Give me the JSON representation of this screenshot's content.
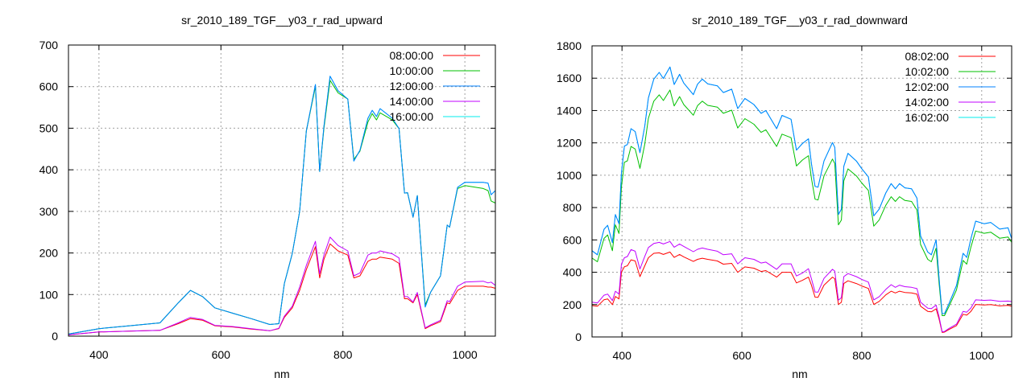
{
  "chart_data": [
    {
      "type": "line",
      "title": "sr_2010_189_TGF__y03_r_rad_upward",
      "xlabel": "nm",
      "ylabel": "",
      "xlim": [
        350,
        1050
      ],
      "ylim": [
        0,
        700
      ],
      "xticks": [
        400,
        600,
        800,
        1000
      ],
      "yticks": [
        0,
        100,
        200,
        300,
        400,
        500,
        600,
        700
      ],
      "grid": true,
      "legend_position": "top-right",
      "x": [
        350,
        400,
        450,
        500,
        530,
        550,
        570,
        590,
        620,
        650,
        680,
        695,
        704,
        717,
        729,
        740,
        755,
        762,
        769,
        779,
        792,
        808,
        818,
        828,
        841,
        848,
        855,
        861,
        881,
        892,
        901,
        906,
        915,
        922,
        935,
        944,
        960,
        971,
        975,
        988,
        1000,
        1030,
        1038,
        1043,
        1050
      ],
      "series": [
        {
          "name": "08:00:00",
          "color": "#ff0000",
          "values": [
            3,
            10,
            12,
            14,
            30,
            42,
            38,
            25,
            22,
            17,
            13,
            18,
            45,
            68,
            110,
            160,
            215,
            140,
            185,
            222,
            205,
            195,
            140,
            145,
            180,
            185,
            185,
            190,
            185,
            175,
            90,
            90,
            80,
            100,
            18,
            25,
            35,
            80,
            78,
            110,
            120,
            120,
            118,
            118,
            115
          ]
        },
        {
          "name": "10:00:00",
          "color": "#00c000",
          "values": [
            5,
            18,
            25,
            32,
            80,
            110,
            95,
            68,
            55,
            42,
            28,
            30,
            126,
            199,
            300,
            493,
            600,
            396,
            500,
            615,
            585,
            570,
            425,
            445,
            515,
            535,
            520,
            537,
            520,
            499,
            344,
            345,
            286,
            338,
            75,
            106,
            145,
            267,
            262,
            355,
            362,
            355,
            350,
            325,
            320
          ]
        },
        {
          "name": "12:00:00",
          "color": "#0080ff",
          "values": [
            5,
            18,
            25,
            32,
            80,
            110,
            95,
            68,
            55,
            42,
            28,
            30,
            126,
            199,
            300,
            493,
            605,
            396,
            505,
            625,
            590,
            570,
            421,
            447,
            524,
            543,
            528,
            547,
            524,
            499,
            344,
            345,
            286,
            338,
            70,
            106,
            145,
            267,
            262,
            358,
            370,
            370,
            368,
            340,
            350
          ]
        },
        {
          "name": "14:00:00",
          "color": "#c000ff",
          "values": [
            3,
            10,
            12,
            14,
            32,
            45,
            40,
            26,
            23,
            18,
            13,
            19,
            48,
            72,
            118,
            170,
            228,
            150,
            195,
            238,
            218,
            205,
            145,
            152,
            195,
            200,
            200,
            205,
            198,
            188,
            95,
            95,
            82,
            105,
            20,
            27,
            38,
            85,
            83,
            120,
            130,
            132,
            128,
            130,
            122
          ]
        },
        {
          "name": "16:00:00",
          "color": "#00eeee",
          "values": [
            5,
            18,
            25,
            32,
            80,
            110,
            95,
            68,
            55,
            42,
            28,
            30,
            126,
            199,
            300,
            493,
            605,
            396,
            505,
            625,
            590,
            570,
            421,
            447,
            524,
            543,
            528,
            547,
            524,
            499,
            344,
            345,
            286,
            338,
            70,
            106,
            145,
            267,
            262,
            358,
            370,
            370,
            368,
            340,
            350
          ]
        }
      ]
    },
    {
      "type": "line",
      "title": "sr_2010_189_TGF__y03_r_rad_downward",
      "xlabel": "nm",
      "ylabel": "",
      "xlim": [
        350,
        1050
      ],
      "ylim": [
        0,
        1800
      ],
      "xticks": [
        400,
        600,
        800,
        1000
      ],
      "yticks": [
        0,
        200,
        400,
        600,
        800,
        1000,
        1200,
        1400,
        1600,
        1800
      ],
      "grid": true,
      "legend_position": "top-right",
      "x": [
        350,
        359,
        370,
        376,
        384,
        389,
        395,
        399,
        404,
        409,
        415,
        422,
        430,
        438,
        444,
        453,
        462,
        469,
        480,
        487,
        496,
        503,
        519,
        526,
        534,
        543,
        559,
        569,
        583,
        593,
        605,
        620,
        632,
        640,
        658,
        667,
        682,
        691,
        701,
        711,
        716,
        722,
        727,
        737,
        751,
        755,
        761,
        766,
        770,
        777,
        791,
        800,
        811,
        820,
        829,
        840,
        849,
        856,
        863,
        872,
        883,
        892,
        898,
        910,
        916,
        924,
        929,
        934,
        938,
        945,
        958,
        969,
        975,
        982,
        990,
        1004,
        1015,
        1030,
        1044,
        1050
      ],
      "series": [
        {
          "name": "08:02:00",
          "color": "#ff0000",
          "values": [
            194,
            190,
            230,
            235,
            200,
            250,
            235,
            401,
            434,
            440,
            477,
            470,
            373,
            440,
            490,
            517,
            520,
            510,
            525,
            492,
            510,
            495,
            467,
            480,
            487,
            480,
            470,
            450,
            455,
            400,
            433,
            425,
            405,
            410,
            370,
            400,
            400,
            334,
            350,
            370,
            320,
            246,
            245,
            320,
            370,
            360,
            201,
            215,
            330,
            347,
            330,
            315,
            300,
            201,
            220,
            260,
            283,
            272,
            283,
            275,
            272,
            265,
            190,
            158,
            155,
            174,
            110,
            28,
            30,
            45,
            70,
            140,
            135,
            158,
            201,
            198,
            200,
            192,
            195,
            190
          ]
        },
        {
          "name": "10:02:00",
          "color": "#00c000",
          "values": [
            488,
            465,
            609,
            631,
            533,
            693,
            640,
            928,
            1080,
            1089,
            1178,
            1162,
            1042,
            1193,
            1352,
            1458,
            1497,
            1462,
            1527,
            1428,
            1486,
            1437,
            1371,
            1430,
            1458,
            1432,
            1421,
            1383,
            1402,
            1292,
            1350,
            1315,
            1265,
            1281,
            1178,
            1254,
            1232,
            1057,
            1094,
            1121,
            981,
            852,
            847,
            996,
            1100,
            1072,
            693,
            723,
            965,
            1039,
            996,
            952,
            906,
            685,
            723,
            814,
            867,
            838,
            867,
            844,
            838,
            785,
            572,
            480,
            465,
            549,
            330,
            132,
            132,
            185,
            291,
            473,
            450,
            556,
            655,
            641,
            648,
            610,
            618,
            585
          ]
        },
        {
          "name": "12:02:00",
          "color": "#0080ff",
          "values": [
            533,
            508,
            666,
            690,
            583,
            757,
            700,
            1014,
            1180,
            1190,
            1288,
            1270,
            1139,
            1304,
            1478,
            1594,
            1636,
            1598,
            1669,
            1561,
            1624,
            1570,
            1498,
            1563,
            1594,
            1565,
            1553,
            1511,
            1532,
            1412,
            1475,
            1437,
            1383,
            1400,
            1288,
            1370,
            1346,
            1155,
            1196,
            1225,
            1072,
            931,
            926,
            1088,
            1202,
            1172,
            757,
            790,
            1055,
            1135,
            1088,
            1040,
            990,
            749,
            790,
            890,
            948,
            916,
            948,
            922,
            916,
            858,
            625,
            525,
            508,
            600,
            360,
            144,
            144,
            202,
            318,
            517,
            492,
            608,
            716,
            700,
            708,
            667,
            675,
            608
          ]
        },
        {
          "name": "14:02:00",
          "color": "#c000ff",
          "values": [
            215,
            210,
            258,
            265,
            225,
            283,
            265,
            450,
            490,
            497,
            540,
            530,
            420,
            498,
            553,
            578,
            585,
            575,
            590,
            555,
            575,
            560,
            527,
            542,
            550,
            542,
            530,
            508,
            514,
            452,
            490,
            480,
            457,
            463,
            418,
            452,
            452,
            377,
            395,
            422,
            360,
            278,
            277,
            362,
            418,
            407,
            227,
            243,
            373,
            392,
            373,
            356,
            339,
            229,
            249,
            294,
            323,
            307,
            320,
            311,
            307,
            299,
            215,
            178,
            175,
            197,
            124,
            32,
            34,
            51,
            79,
            158,
            153,
            179,
            229,
            226,
            228,
            220,
            222,
            219
          ]
        },
        {
          "name": "16:02:00",
          "color": "#00eeee",
          "values": [
            533,
            508,
            666,
            690,
            583,
            757,
            700,
            1014,
            1180,
            1190,
            1288,
            1270,
            1139,
            1304,
            1478,
            1594,
            1636,
            1598,
            1669,
            1561,
            1624,
            1570,
            1498,
            1563,
            1594,
            1565,
            1553,
            1511,
            1532,
            1412,
            1475,
            1437,
            1383,
            1400,
            1288,
            1370,
            1346,
            1155,
            1196,
            1225,
            1072,
            931,
            926,
            1088,
            1202,
            1172,
            757,
            790,
            1055,
            1135,
            1088,
            1040,
            990,
            749,
            790,
            890,
            948,
            916,
            948,
            922,
            916,
            858,
            625,
            525,
            508,
            600,
            360,
            144,
            144,
            202,
            318,
            517,
            492,
            608,
            716,
            700,
            708,
            667,
            675,
            608
          ]
        }
      ]
    }
  ]
}
